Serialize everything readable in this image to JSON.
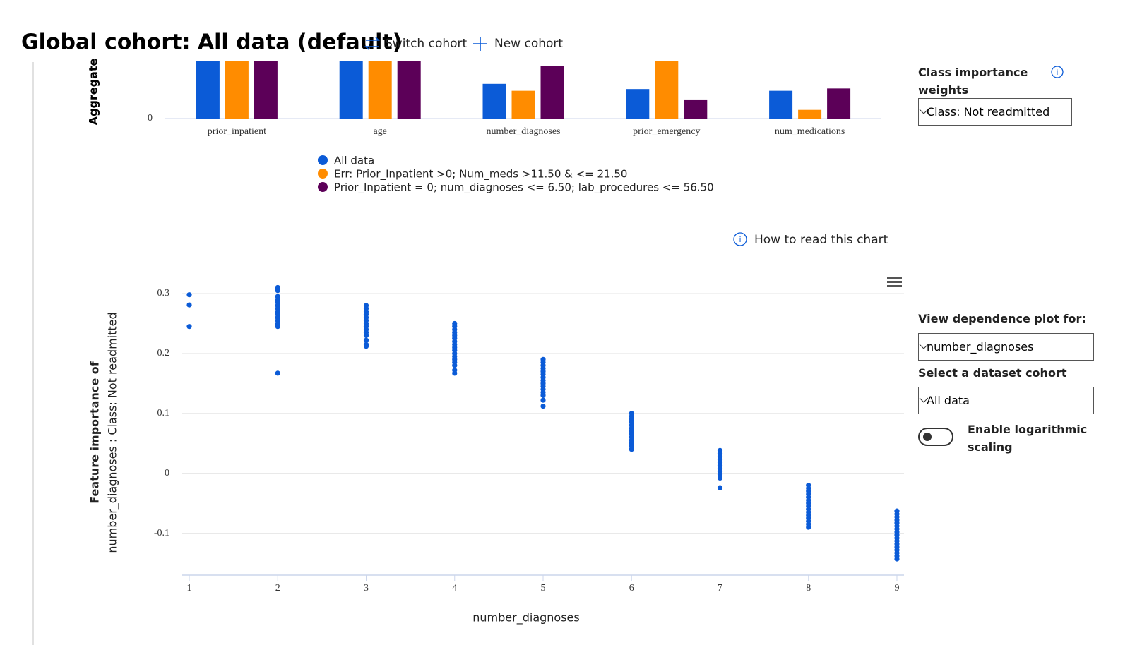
{
  "header": {
    "title": "Global cohort: All data (default)",
    "switch_cohort": "Switch cohort",
    "new_cohort": "New cohort"
  },
  "chart_data": [
    {
      "type": "bar",
      "y_label": "Aggregate",
      "categories": [
        "prior_inpatient",
        "age",
        "number_diagnoses",
        "prior_emergency",
        "num_medications"
      ],
      "series": [
        {
          "name": "All data",
          "color": "#0b5bd7",
          "values": [
            1.0,
            1.0,
            0.6,
            0.51,
            0.48
          ]
        },
        {
          "name": "Err: Prior_Inpatient >0; Num_meds >11.50 & <= 21.50",
          "color": "#ff8c00",
          "values": [
            1.0,
            1.0,
            0.48,
            1.0,
            0.15
          ]
        },
        {
          "name": "Prior_Inpatient = 0; num_diagnoses <= 6.50; lab_procedures <= 56.50",
          "color": "#5c0058",
          "values": [
            1.0,
            1.0,
            0.91,
            0.33,
            0.52
          ]
        }
      ],
      "ylim": [
        0,
        1
      ],
      "yticks": [
        0
      ]
    },
    {
      "type": "scatter",
      "y_label": [
        "Feature importance of",
        "number_diagnoses : Class: Not readmitted"
      ],
      "x_label": "number_diagnoses",
      "color": "#0b5bd7",
      "grid": true,
      "xlim": [
        0.92,
        9.08
      ],
      "xticks": [
        1,
        2,
        3,
        4,
        5,
        6,
        7,
        8,
        9
      ],
      "ylim": [
        -0.17,
        0.33
      ],
      "yticks": [
        -0.1,
        0,
        0.1,
        0.2,
        0.3
      ],
      "x": [
        1,
        1,
        1,
        2,
        2,
        2,
        2,
        2,
        2,
        2,
        2,
        2,
        2,
        2,
        2,
        2,
        2,
        3,
        3,
        3,
        3,
        3,
        3,
        3,
        3,
        3,
        3,
        3,
        3,
        3,
        3,
        4,
        4,
        4,
        4,
        4,
        4,
        4,
        4,
        4,
        4,
        4,
        4,
        4,
        4,
        4,
        4,
        4,
        5,
        5,
        5,
        5,
        5,
        5,
        5,
        5,
        5,
        5,
        5,
        5,
        5,
        5,
        5,
        6,
        6,
        6,
        6,
        6,
        6,
        6,
        6,
        6,
        6,
        6,
        6,
        6,
        7,
        7,
        7,
        7,
        7,
        7,
        7,
        7,
        7,
        7,
        7,
        8,
        8,
        8,
        8,
        8,
        8,
        8,
        8,
        8,
        8,
        8,
        8,
        8,
        8,
        8,
        9,
        9,
        9,
        9,
        9,
        9,
        9,
        9,
        9,
        9,
        9,
        9,
        9,
        9,
        9,
        9,
        9
      ],
      "y": [
        0.298,
        0.281,
        0.245,
        0.31,
        0.305,
        0.295,
        0.29,
        0.285,
        0.28,
        0.275,
        0.27,
        0.265,
        0.26,
        0.255,
        0.25,
        0.245,
        0.167,
        0.28,
        0.275,
        0.27,
        0.265,
        0.26,
        0.255,
        0.25,
        0.245,
        0.24,
        0.235,
        0.23,
        0.222,
        0.215,
        0.212,
        0.25,
        0.245,
        0.24,
        0.235,
        0.23,
        0.225,
        0.22,
        0.215,
        0.21,
        0.205,
        0.2,
        0.195,
        0.19,
        0.185,
        0.18,
        0.172,
        0.167,
        0.19,
        0.185,
        0.18,
        0.175,
        0.17,
        0.165,
        0.16,
        0.155,
        0.15,
        0.145,
        0.14,
        0.135,
        0.13,
        0.122,
        0.112,
        0.1,
        0.095,
        0.09,
        0.085,
        0.08,
        0.075,
        0.07,
        0.065,
        0.06,
        0.055,
        0.05,
        0.045,
        0.04,
        0.038,
        0.033,
        0.028,
        0.023,
        0.018,
        0.013,
        0.008,
        0.003,
        -0.002,
        -0.008,
        -0.024,
        -0.02,
        -0.025,
        -0.03,
        -0.035,
        -0.04,
        -0.045,
        -0.05,
        -0.055,
        -0.06,
        -0.065,
        -0.07,
        -0.075,
        -0.08,
        -0.085,
        -0.09,
        -0.063,
        -0.068,
        -0.073,
        -0.078,
        -0.083,
        -0.088,
        -0.093,
        -0.098,
        -0.103,
        -0.108,
        -0.113,
        -0.118,
        -0.123,
        -0.128,
        -0.133,
        -0.138,
        -0.143
      ]
    }
  ],
  "controls": {
    "class_weights_label": "Class importance weights",
    "class_weights_value": "Class: Not readmitted",
    "how_to_read": "How to read this chart",
    "dependence_label": "View dependence plot for:",
    "dependence_value": "number_diagnoses",
    "cohort_label": "Select a dataset cohort",
    "cohort_value": "All data",
    "log_toggle": "Enable logarithmic scaling"
  }
}
